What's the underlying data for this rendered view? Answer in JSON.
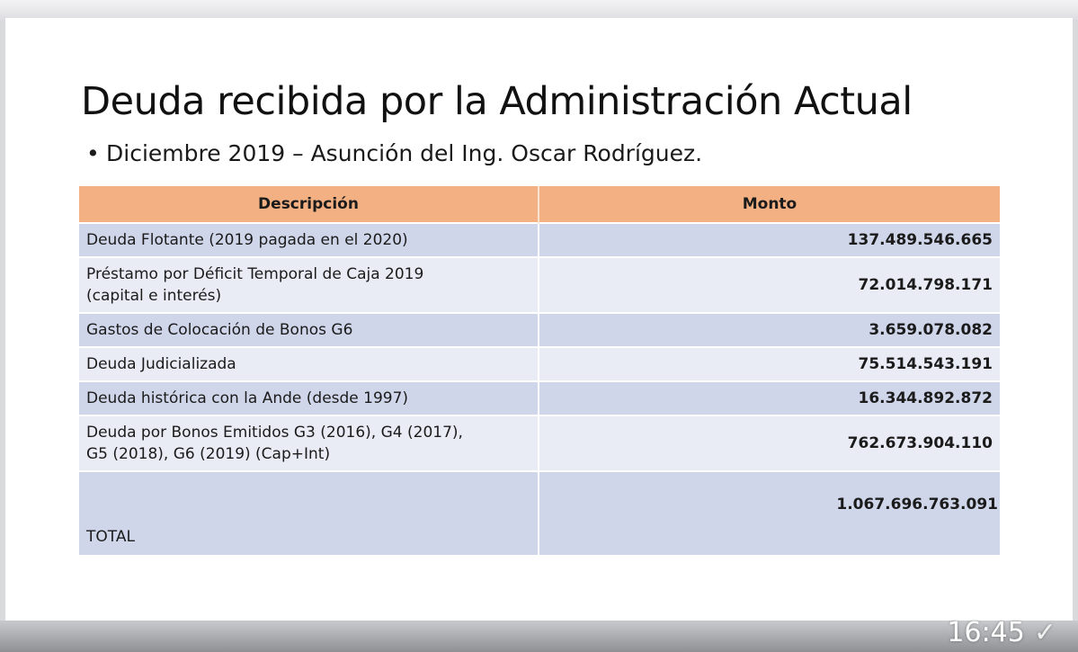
{
  "slide": {
    "title": "Deuda recibida por la Administración Actual",
    "subtitle": "Diciembre 2019 – Asunción del Ing. Oscar Rodríguez.",
    "bullet": "•"
  },
  "table": {
    "headers": [
      "Descripción",
      "Monto"
    ],
    "rows": [
      {
        "line1": "Deuda Flotante (2019 pagada en el 2020)",
        "line2": "",
        "amount": "137.489.546.665"
      },
      {
        "line1": "Préstamo por Déficit Temporal de Caja 2019",
        "line2": "(capital e interés)",
        "amount": "72.014.798.171"
      },
      {
        "line1": "Gastos de Colocación de Bonos G6",
        "line2": "",
        "amount": "3.659.078.082"
      },
      {
        "line1": "Deuda Judicializada",
        "line2": "",
        "amount": "75.514.543.191"
      },
      {
        "line1": "Deuda histórica con la Ande (desde 1997)",
        "line2": "",
        "amount": "16.344.892.872"
      },
      {
        "line1": "Deuda por Bonos Emitidos G3 (2016), G4 (2017),",
        "line2": "G5 (2018), G6 (2019) (Cap+Int)",
        "amount": "762.673.904.110"
      }
    ],
    "total": {
      "label": "TOTAL",
      "amount": "1.067.696.763.091"
    }
  },
  "status": {
    "time": "16:45",
    "check_icon": "✓"
  },
  "colors": {
    "header_bg": "#f2b083",
    "band_dark": "#d0d6ea",
    "band_light": "#e9ecf5"
  }
}
